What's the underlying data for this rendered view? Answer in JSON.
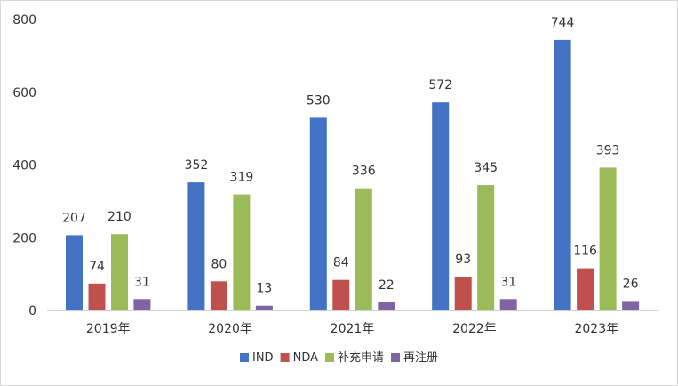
{
  "chart_data": {
    "type": "bar",
    "title": "",
    "xlabel": "",
    "ylabel": "",
    "categories": [
      "2019年",
      "2020年",
      "2021年",
      "2022年",
      "2023年"
    ],
    "yticks": [
      "0",
      "200",
      "400",
      "600",
      "800"
    ],
    "ylim": [
      0,
      800
    ],
    "grid": false,
    "legend_position": "bottom",
    "series": [
      {
        "name": "IND",
        "color": "#4472c4",
        "values": [
          207,
          352,
          530,
          572,
          744
        ]
      },
      {
        "name": "NDA",
        "color": "#c0504d",
        "values": [
          74,
          80,
          84,
          93,
          116
        ]
      },
      {
        "name": "补充申请",
        "color": "#9bbb59",
        "values": [
          210,
          319,
          336,
          345,
          393
        ]
      },
      {
        "name": "再注册",
        "color": "#8064a2",
        "values": [
          31,
          13,
          22,
          31,
          26
        ]
      }
    ]
  }
}
